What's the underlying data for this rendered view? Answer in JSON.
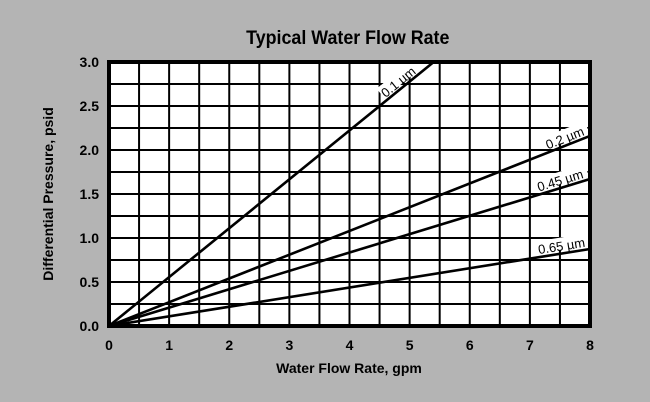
{
  "chart_data": {
    "type": "line",
    "title": "Typical Water Flow Rate",
    "xlabel": "Water Flow Rate, gpm",
    "ylabel": "Differential Pressure, psid",
    "xlim": [
      0,
      8
    ],
    "ylim": [
      0,
      3.0
    ],
    "x_ticks": [
      "0",
      "1",
      "2",
      "3",
      "4",
      "5",
      "6",
      "7",
      "8"
    ],
    "y_ticks": [
      "0.0",
      "0.5",
      "1.0",
      "1.5",
      "2.0",
      "2.5",
      "3.0"
    ],
    "grid": true,
    "x_grid_step": 0.5,
    "y_grid_step": 0.25,
    "series": [
      {
        "name": "0.1 µm",
        "x": [
          0,
          5.4
        ],
        "y": [
          0,
          3.0
        ]
      },
      {
        "name": "0.2 µm",
        "x": [
          0,
          8
        ],
        "y": [
          0,
          2.16
        ]
      },
      {
        "name": "0.45 µm",
        "x": [
          0,
          8
        ],
        "y": [
          0,
          1.67
        ]
      },
      {
        "name": "0.65 µm",
        "x": [
          0,
          8
        ],
        "y": [
          0,
          0.875
        ]
      }
    ],
    "colors": {
      "background": "#b4b4b4",
      "plot": "#ffffff",
      "lines": "#000000"
    }
  }
}
